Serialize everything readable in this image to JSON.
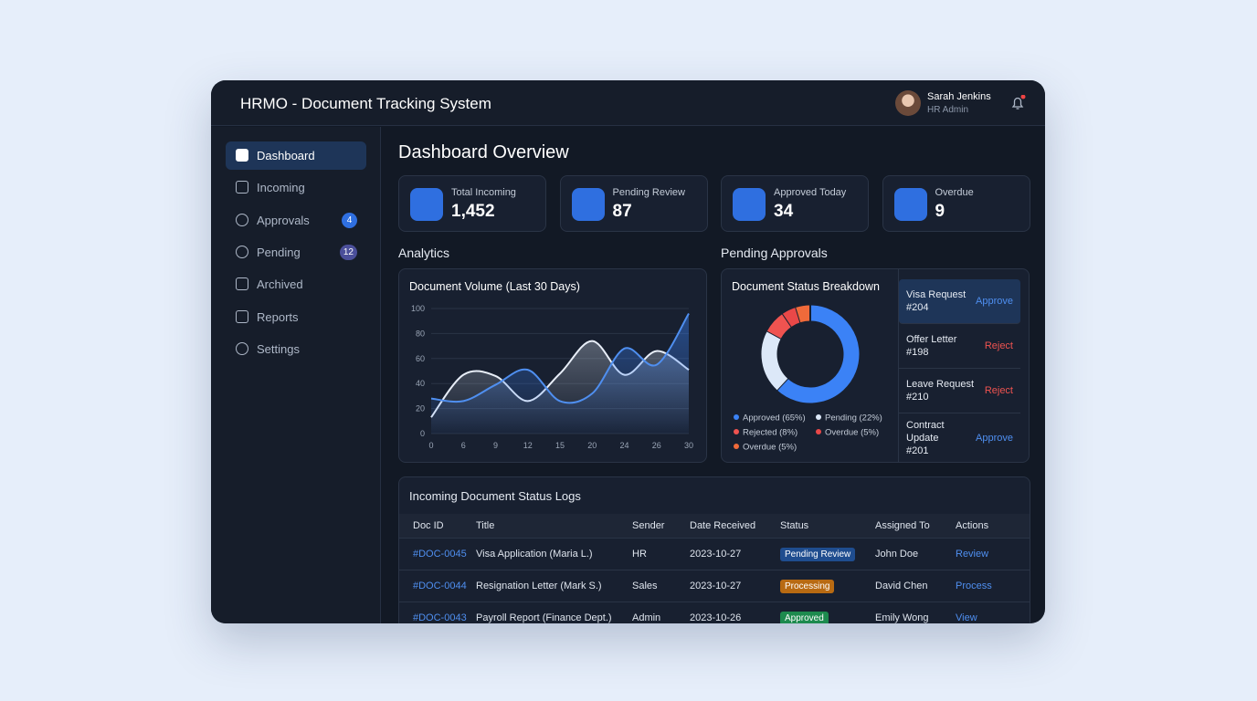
{
  "header": {
    "title": "HRMO - Document Tracking System",
    "user": {
      "name": "Sarah Jenkins",
      "role": "HR Admin"
    }
  },
  "nav": [
    {
      "label": "Dashboard"
    },
    {
      "label": "Incoming"
    },
    {
      "label": "Approvals",
      "badge": 4
    },
    {
      "label": "Pending",
      "badge": 12
    },
    {
      "label": "Archived"
    },
    {
      "label": "Reports"
    },
    {
      "label": "Settings"
    }
  ],
  "page_title": "Dashboard Overview",
  "stats": [
    {
      "label": "Total Incoming",
      "value": "1,452"
    },
    {
      "label": "Pending Review",
      "value": 87
    },
    {
      "label": "Approved Today",
      "value": 34
    },
    {
      "label": "Overdue",
      "value": 9
    }
  ],
  "analytics_heading": "Analytics",
  "approvals_heading": "Pending Approvals",
  "volume_chart": {
    "type": "line",
    "title": "Document Volume (Last 30 Days)",
    "categories": [
      "0",
      "6",
      "9",
      "12",
      "15",
      "20",
      "24",
      "26",
      "30"
    ],
    "series": [
      {
        "color": "#e8eef8",
        "values": [
          13,
          47,
          46,
          26,
          48,
          74,
          47,
          66,
          51
        ]
      },
      {
        "color": "#4f8ff0",
        "values": [
          28,
          26,
          39,
          51,
          26,
          32,
          68,
          55,
          96
        ]
      }
    ],
    "ylim": [
      0,
      100
    ],
    "yticks": [
      0,
      20,
      40,
      60,
      80,
      100
    ],
    "grid": true
  },
  "status_chart": {
    "type": "donut",
    "title": "Document Status Breakdown",
    "labels": [
      "Approved (65%)",
      "Pending (22%)",
      "Rejected (8%)",
      "Overdue (5%)",
      "Overdue (5%)"
    ],
    "values": [
      65,
      22,
      8,
      5,
      5
    ],
    "colors": [
      "#3b82f6",
      "#dce8f8",
      "#ef5350",
      "#e94848",
      "#f06a3a"
    ]
  },
  "approvals": [
    {
      "title": "Visa Request #204",
      "action": "Approve"
    },
    {
      "title": "Offer Letter #198",
      "action": "Reject"
    },
    {
      "title": "Leave Request #210",
      "action": "Reject"
    },
    {
      "title": "Contract Update #201",
      "action": "Approve"
    }
  ],
  "logs": {
    "title": "Incoming Document Status Logs",
    "columns": [
      "Doc ID",
      "Title",
      "Sender",
      "Date Received",
      "Status",
      "Assigned To",
      "Actions"
    ],
    "rows": [
      [
        "#DOC-0045",
        "Visa Application (Maria L.)",
        "HR",
        "2023-10-27",
        "Pending Review",
        "John Doe",
        "Review"
      ],
      [
        "#DOC-0044",
        "Resignation Letter (Mark S.)",
        "Sales",
        "2023-10-27",
        "Processing",
        "David Chen",
        "Process"
      ],
      [
        "#DOC-0043",
        "Payroll Report (Finance Dept.)",
        "Admin",
        "2023-10-26",
        "Approved",
        "Emily Wong",
        "View"
      ]
    ]
  }
}
